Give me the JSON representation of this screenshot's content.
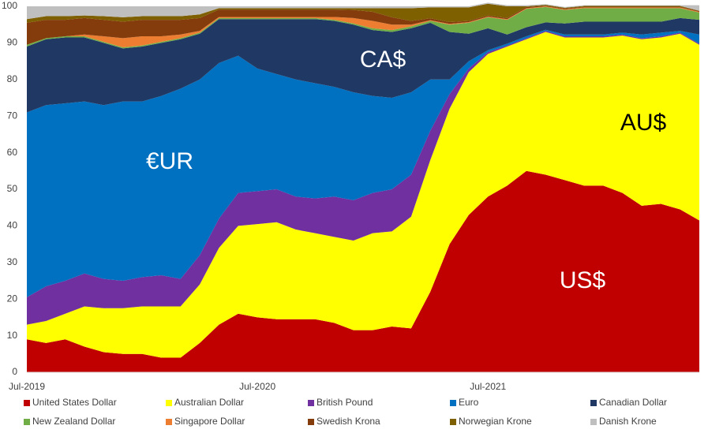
{
  "chart_data": {
    "type": "stacked_area",
    "categories": [
      "Jul-2019",
      null,
      null,
      null,
      null,
      null,
      null,
      null,
      null,
      null,
      null,
      null,
      "Jul-2020",
      null,
      null,
      null,
      null,
      null,
      null,
      null,
      null,
      null,
      null,
      null,
      "Jul-2021",
      null,
      null,
      null,
      null,
      null,
      null,
      null,
      null,
      null,
      null,
      null
    ],
    "ylim": [
      0,
      100
    ],
    "yticks": [
      0,
      10,
      20,
      30,
      40,
      50,
      60,
      70,
      80,
      90,
      100
    ],
    "series": [
      {
        "name": "United States Dollar",
        "color": "#c00000",
        "values": [
          9,
          8,
          9,
          7,
          5.5,
          5,
          5,
          4,
          4,
          8,
          13,
          16,
          15,
          14.5,
          14.5,
          14.5,
          13.5,
          11.5,
          11.5,
          12.5,
          12,
          22,
          35,
          43,
          48,
          51,
          55,
          54,
          52.5,
          51,
          51,
          49,
          45.5,
          46,
          44.5,
          41.5
        ]
      },
      {
        "name": "Australian Dollar",
        "color": "#ffff00",
        "values": [
          4,
          6,
          7,
          11,
          12,
          12.5,
          13,
          14,
          14,
          16,
          21,
          24,
          25.5,
          26.5,
          24.5,
          23.5,
          23.5,
          24.5,
          26.5,
          26,
          30.5,
          36,
          37,
          39,
          39,
          38,
          36,
          39,
          39,
          40.5,
          40.5,
          43,
          45.5,
          45.5,
          48,
          48
        ]
      },
      {
        "name": "British Pound",
        "color": "#7030a0",
        "values": [
          7.5,
          9.5,
          9,
          9,
          8,
          7.5,
          8,
          8.5,
          7.5,
          8,
          8,
          9,
          9,
          9,
          9,
          9.5,
          11,
          11,
          11,
          11.5,
          11.5,
          8,
          4,
          1,
          0.5,
          0.3,
          0.3,
          0.3,
          0.3,
          0.3,
          0.3,
          0.3,
          0.3,
          0.3,
          0.3,
          0.3
        ]
      },
      {
        "name": "Euro",
        "color": "#0070c0",
        "values": [
          50.5,
          49.5,
          48.5,
          47,
          47.5,
          49,
          48,
          49,
          52,
          48,
          42.5,
          37.5,
          33.5,
          31.5,
          32,
          31.5,
          30,
          29.5,
          26.5,
          25,
          22.5,
          14,
          4,
          2,
          0.5,
          0.5,
          0.5,
          0.3,
          0.5,
          0.5,
          0.5,
          0.5,
          1,
          1,
          0.5,
          2.5
        ]
      },
      {
        "name": "Canadian Dollar",
        "color": "#203864",
        "values": [
          18,
          18,
          18,
          17.5,
          17,
          14.5,
          15,
          14.5,
          13.5,
          12.5,
          12,
          10,
          13.5,
          15,
          16.5,
          17.5,
          18,
          18.5,
          18,
          18,
          17.5,
          15.5,
          13,
          7.5,
          6,
          2.5,
          2.5,
          2,
          3,
          3.5,
          3.5,
          3,
          3.5,
          3,
          3.5,
          4
        ]
      },
      {
        "name": "New Zealand Dollar",
        "color": "#70ad47",
        "values": [
          0.5,
          0.3,
          0.3,
          0.3,
          0.3,
          0.3,
          0.3,
          0.3,
          0.3,
          0.3,
          0.3,
          0.3,
          0.3,
          0.3,
          0.3,
          0.3,
          0.3,
          0.3,
          0.5,
          0.5,
          0.5,
          0.5,
          2,
          3,
          3,
          4,
          5,
          4.2,
          3.7,
          3.7,
          3.7,
          3.7,
          3.7,
          3.7,
          2.7,
          2
        ]
      },
      {
        "name": "Singapore Dollar",
        "color": "#ed7d31",
        "values": [
          0,
          0,
          0,
          0.5,
          1.5,
          2.5,
          2.5,
          1.5,
          1,
          0.5,
          0.3,
          0.3,
          0.3,
          0.3,
          0.3,
          0.3,
          0.8,
          1.5,
          2,
          1.5,
          0.5,
          0.2,
          0.2,
          0.2,
          0.2,
          0.2,
          0.2,
          0.2,
          0.2,
          0.2,
          0.2,
          0.2,
          0.2,
          0.2,
          0.2,
          0.2
        ]
      },
      {
        "name": "Swedish Krona",
        "color": "#843c0c",
        "values": [
          6,
          5,
          4.5,
          4.5,
          4.5,
          4.5,
          4.5,
          4.5,
          4,
          3.5,
          2,
          2,
          2,
          2,
          2,
          2,
          2,
          2.2,
          2.5,
          2,
          1,
          0.5,
          0.5,
          0.3,
          0.3,
          0.3,
          0.3,
          0.2,
          0.2,
          0.2,
          0.2,
          0.2,
          0.2,
          0.2,
          0.2,
          0.2
        ]
      },
      {
        "name": "Norwegian Krone",
        "color": "#7f6000",
        "values": [
          1,
          1,
          1,
          0.7,
          1,
          1.2,
          1,
          1,
          1,
          1,
          0.4,
          0.4,
          0.4,
          0.4,
          0.4,
          0.4,
          0.4,
          0.5,
          1,
          2.5,
          3.5,
          3,
          4,
          3.7,
          3.2,
          3.2,
          0.2,
          0.2,
          0.2,
          0.2,
          0.2,
          0.2,
          0.2,
          0.2,
          0.2,
          0.1
        ]
      },
      {
        "name": "Danish Krone",
        "color": "#bfbfbf",
        "values": [
          3.5,
          2.7,
          2.7,
          2.5,
          2.7,
          3,
          2.7,
          2.7,
          2.7,
          2.2,
          0.5,
          0.5,
          0.5,
          0.5,
          0.5,
          0.5,
          0.5,
          0.5,
          0.5,
          0.5,
          0.5,
          0.3,
          0.3,
          0.3,
          0.3,
          0.3,
          0.3,
          0.2,
          0.2,
          0.2,
          0.2,
          0.2,
          0.2,
          0.2,
          0.2,
          1.5
        ]
      }
    ],
    "annotations": [
      "€UR",
      "CA$",
      "AU$",
      "US$"
    ]
  }
}
